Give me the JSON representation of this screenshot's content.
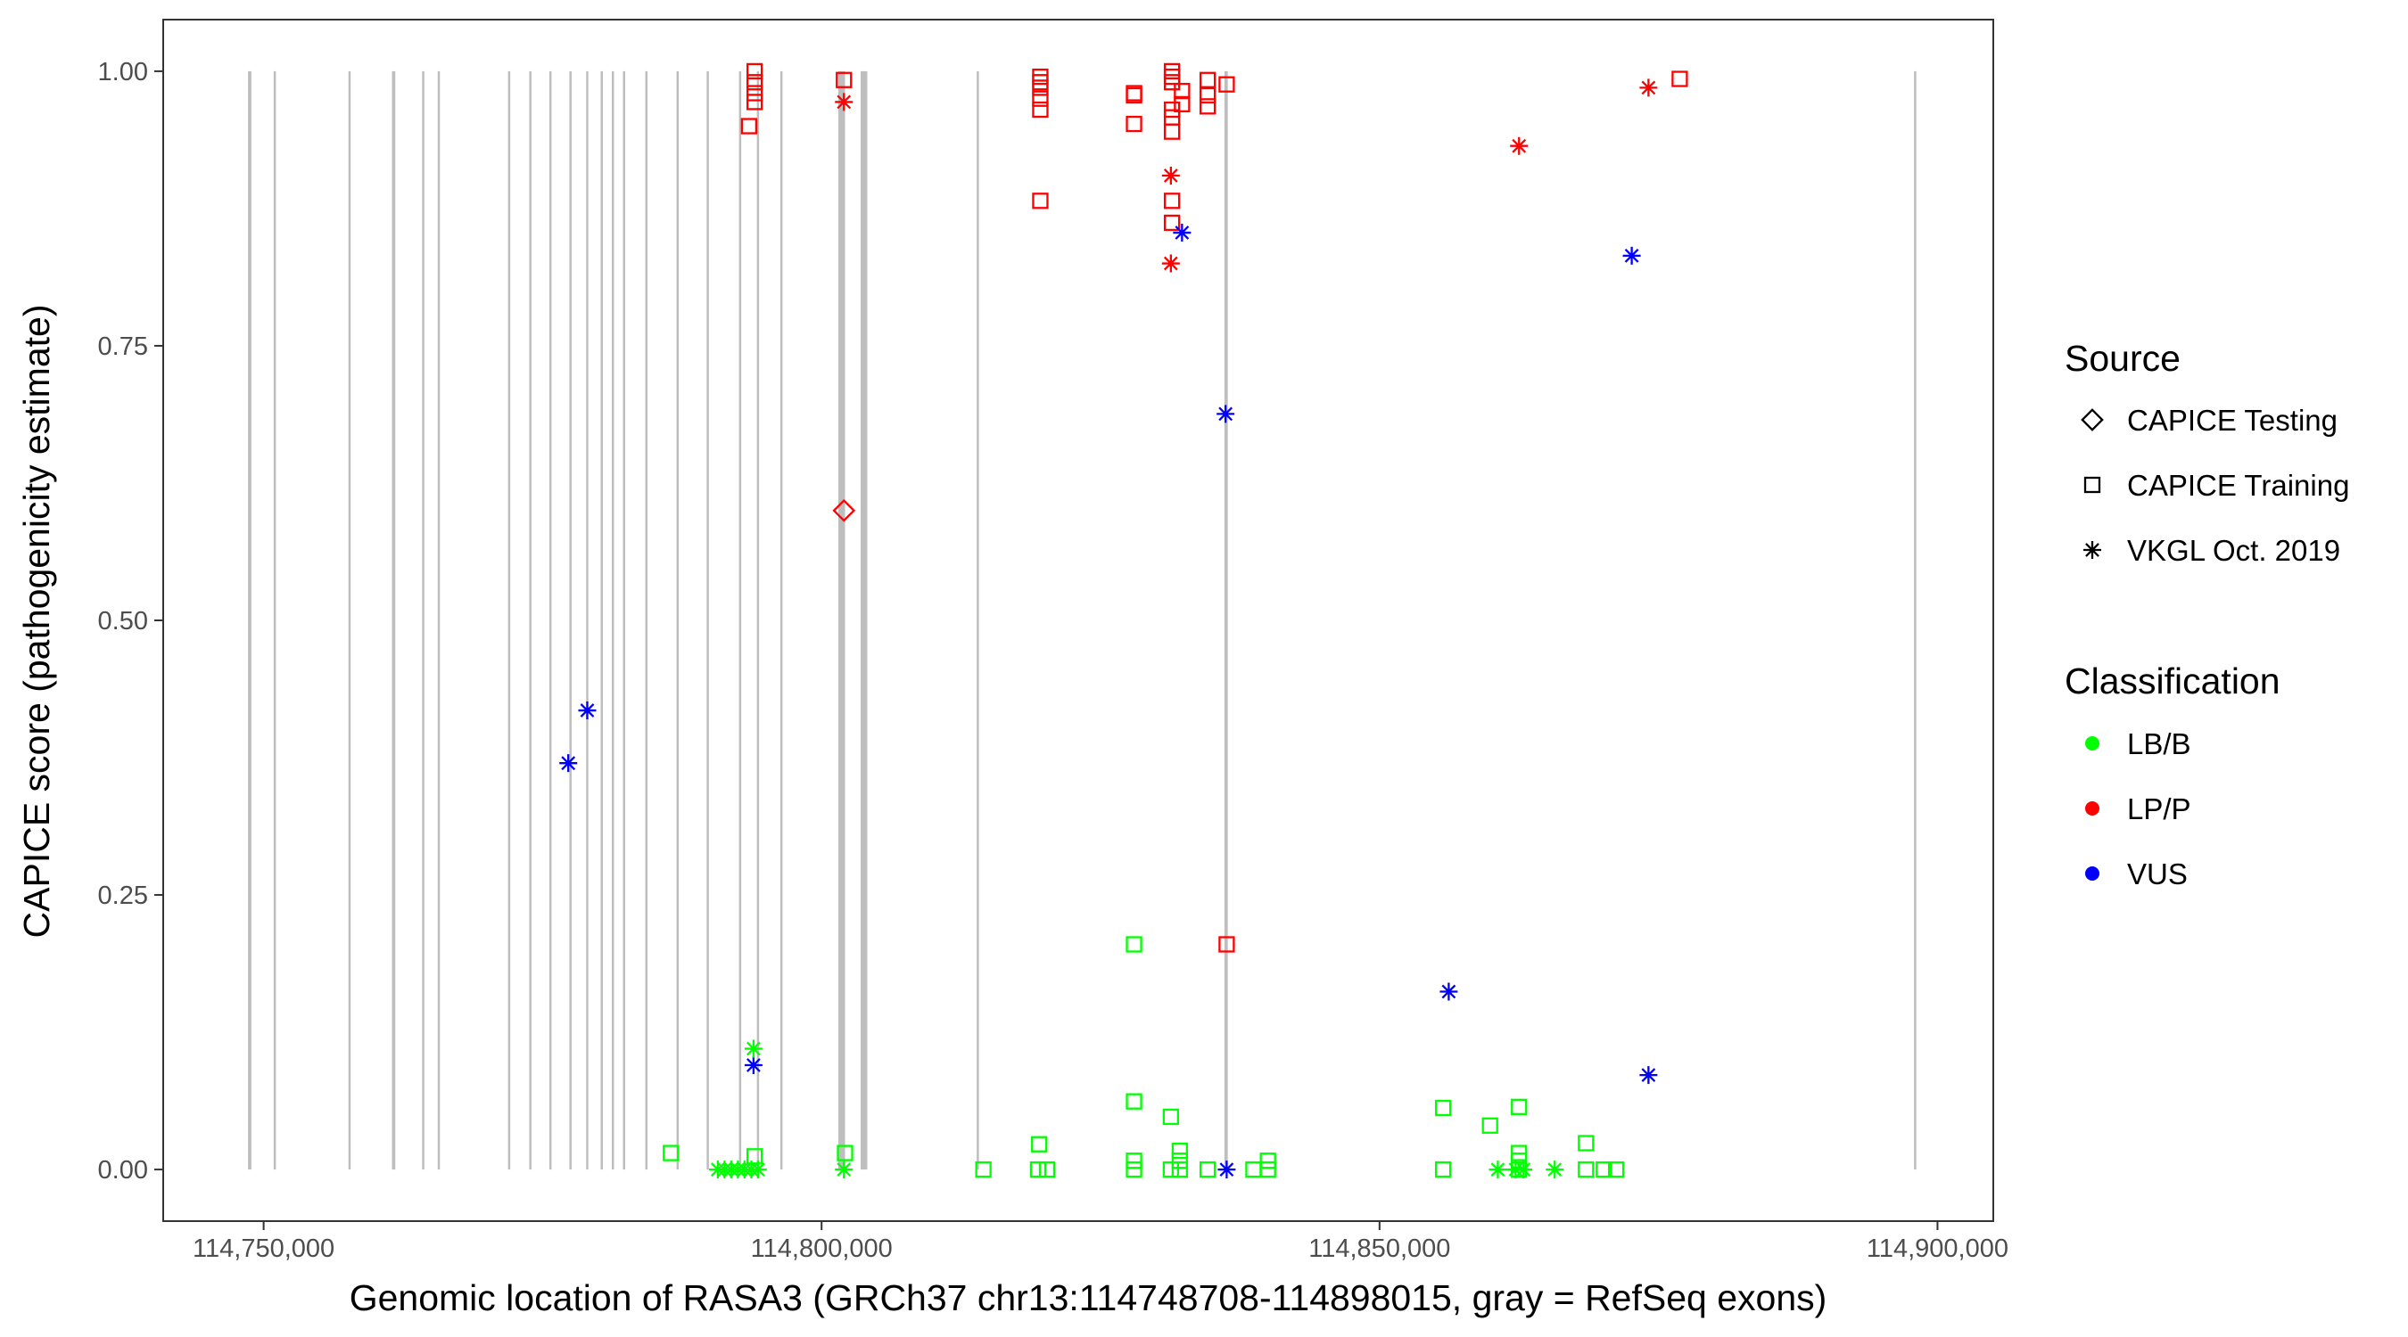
{
  "chart_data": {
    "type": "scatter",
    "xlabel": "Genomic location of RASA3 (GRCh37 chr13:114748708-114898015, gray = RefSeq exons)",
    "ylabel": "CAPICE score (pathogenicity estimate)",
    "xlim": [
      114741000,
      114905000
    ],
    "ylim": [
      -0.047,
      1.047
    ],
    "x_ticks": [
      114750000,
      114800000,
      114850000,
      114900000
    ],
    "x_tick_labels": [
      "114,750,000",
      "114,800,000",
      "114,850,000",
      "114,900,000"
    ],
    "y_ticks": [
      0,
      0.25,
      0.5,
      0.75,
      1.0
    ],
    "y_tick_labels": [
      "0.00",
      "0.25",
      "0.50",
      "0.75",
      "1.00"
    ],
    "grid": false,
    "exon_color": "#bebebe",
    "exons": [
      [
        114748600,
        114748900
      ],
      [
        114750900,
        114751100
      ],
      [
        114757600,
        114757800
      ],
      [
        114761500,
        114761800
      ],
      [
        114764200,
        114764400
      ],
      [
        114765600,
        114765800
      ],
      [
        114771900,
        114772100
      ],
      [
        114773800,
        114774000
      ],
      [
        114775600,
        114775800
      ],
      [
        114777400,
        114777600
      ],
      [
        114778900,
        114779100
      ],
      [
        114780200,
        114780400
      ],
      [
        114781200,
        114781400
      ],
      [
        114782200,
        114782400
      ],
      [
        114784200,
        114784400
      ],
      [
        114787000,
        114787200
      ],
      [
        114789700,
        114789900
      ],
      [
        114792600,
        114792800
      ],
      [
        114794200,
        114794400
      ],
      [
        114796300,
        114796500
      ],
      [
        114801500,
        114802100
      ],
      [
        114803500,
        114804100
      ],
      [
        114813900,
        114814100
      ],
      [
        114836100,
        114836400
      ],
      [
        114897900,
        114898100
      ]
    ],
    "legend": {
      "placement": "right",
      "source_title": "Source",
      "source_items": [
        {
          "label": "CAPICE Testing",
          "shape": "diamond"
        },
        {
          "label": "CAPICE Training",
          "shape": "square"
        },
        {
          "label": "VKGL Oct. 2019",
          "shape": "asterisk"
        }
      ],
      "class_title": "Classification",
      "class_items": [
        {
          "label": "LB/B",
          "color": "#00ff00"
        },
        {
          "label": "LP/P",
          "color": "#ff0000"
        },
        {
          "label": "VUS",
          "color": "#0000ff"
        }
      ]
    },
    "series": [
      {
        "name": "CAPICE Testing",
        "shape": "diamond",
        "points": [
          {
            "x": 114802000,
            "y": 0.6,
            "class": "LP/P"
          }
        ]
      },
      {
        "name": "CAPICE Training",
        "shape": "square",
        "points": [
          {
            "x": 114794000,
            "y": 1.0,
            "class": "LP/P"
          },
          {
            "x": 114794000,
            "y": 0.99,
            "class": "LP/P"
          },
          {
            "x": 114794000,
            "y": 0.98,
            "class": "LP/P"
          },
          {
            "x": 114794000,
            "y": 0.972,
            "class": "LP/P"
          },
          {
            "x": 114793500,
            "y": 0.95,
            "class": "LP/P"
          },
          {
            "x": 114802000,
            "y": 0.992,
            "class": "LP/P"
          },
          {
            "x": 114819600,
            "y": 0.995,
            "class": "LP/P"
          },
          {
            "x": 114819600,
            "y": 0.99,
            "class": "LP/P"
          },
          {
            "x": 114819600,
            "y": 0.985,
            "class": "LP/P"
          },
          {
            "x": 114819600,
            "y": 0.975,
            "class": "LP/P"
          },
          {
            "x": 114819600,
            "y": 0.965,
            "class": "LP/P"
          },
          {
            "x": 114819600,
            "y": 0.882,
            "class": "LP/P"
          },
          {
            "x": 114828000,
            "y": 0.98,
            "class": "LP/P"
          },
          {
            "x": 114828000,
            "y": 0.978,
            "class": "LP/P"
          },
          {
            "x": 114828000,
            "y": 0.952,
            "class": "LP/P"
          },
          {
            "x": 114831400,
            "y": 1.0,
            "class": "LP/P"
          },
          {
            "x": 114831400,
            "y": 0.995,
            "class": "LP/P"
          },
          {
            "x": 114831400,
            "y": 0.99,
            "class": "LP/P"
          },
          {
            "x": 114831400,
            "y": 0.965,
            "class": "LP/P"
          },
          {
            "x": 114831400,
            "y": 0.958,
            "class": "LP/P"
          },
          {
            "x": 114831400,
            "y": 0.945,
            "class": "LP/P"
          },
          {
            "x": 114831400,
            "y": 0.882,
            "class": "LP/P"
          },
          {
            "x": 114831400,
            "y": 0.862,
            "class": "LP/P"
          },
          {
            "x": 114832300,
            "y": 0.982,
            "class": "LP/P"
          },
          {
            "x": 114832300,
            "y": 0.97,
            "class": "LP/P"
          },
          {
            "x": 114834600,
            "y": 0.992,
            "class": "LP/P"
          },
          {
            "x": 114834600,
            "y": 0.978,
            "class": "LP/P"
          },
          {
            "x": 114834600,
            "y": 0.968,
            "class": "LP/P"
          },
          {
            "x": 114836300,
            "y": 0.988,
            "class": "LP/P"
          },
          {
            "x": 114836300,
            "y": 0.205,
            "class": "LP/P"
          },
          {
            "x": 114876900,
            "y": 0.993,
            "class": "LP/P"
          },
          {
            "x": 114786500,
            "y": 0.015,
            "class": "LB/B"
          },
          {
            "x": 114794000,
            "y": 0.012,
            "class": "LB/B"
          },
          {
            "x": 114802100,
            "y": 0.015,
            "class": "LB/B"
          },
          {
            "x": 114814500,
            "y": 0.0,
            "class": "LB/B"
          },
          {
            "x": 114819500,
            "y": 0.023,
            "class": "LB/B"
          },
          {
            "x": 114819400,
            "y": 0.0,
            "class": "LB/B"
          },
          {
            "x": 114820200,
            "y": 0.0,
            "class": "LB/B"
          },
          {
            "x": 114828000,
            "y": 0.205,
            "class": "LB/B"
          },
          {
            "x": 114828000,
            "y": 0.062,
            "class": "LB/B"
          },
          {
            "x": 114828000,
            "y": 0.008,
            "class": "LB/B"
          },
          {
            "x": 114828000,
            "y": 0.0,
            "class": "LB/B"
          },
          {
            "x": 114831300,
            "y": 0.048,
            "class": "LB/B"
          },
          {
            "x": 114831300,
            "y": 0.0,
            "class": "LB/B"
          },
          {
            "x": 114832100,
            "y": 0.017,
            "class": "LB/B"
          },
          {
            "x": 114832100,
            "y": 0.008,
            "class": "LB/B"
          },
          {
            "x": 114832100,
            "y": 0.0,
            "class": "LB/B"
          },
          {
            "x": 114834600,
            "y": 0.0,
            "class": "LB/B"
          },
          {
            "x": 114838700,
            "y": 0.0,
            "class": "LB/B"
          },
          {
            "x": 114840000,
            "y": 0.008,
            "class": "LB/B"
          },
          {
            "x": 114840000,
            "y": 0.0,
            "class": "LB/B"
          },
          {
            "x": 114855700,
            "y": 0.056,
            "class": "LB/B"
          },
          {
            "x": 114855700,
            "y": 0.0,
            "class": "LB/B"
          },
          {
            "x": 114859900,
            "y": 0.04,
            "class": "LB/B"
          },
          {
            "x": 114862500,
            "y": 0.057,
            "class": "LB/B"
          },
          {
            "x": 114862500,
            "y": 0.015,
            "class": "LB/B"
          },
          {
            "x": 114862500,
            "y": 0.008,
            "class": "LB/B"
          },
          {
            "x": 114862500,
            "y": 0.0,
            "class": "LB/B"
          },
          {
            "x": 114868500,
            "y": 0.024,
            "class": "LB/B"
          },
          {
            "x": 114868500,
            "y": 0.0,
            "class": "LB/B"
          },
          {
            "x": 114870100,
            "y": 0.0,
            "class": "LB/B"
          },
          {
            "x": 114871200,
            "y": 0.0,
            "class": "LB/B"
          }
        ]
      },
      {
        "name": "VKGL Oct. 2019",
        "shape": "asterisk",
        "points": [
          {
            "x": 114802000,
            "y": 0.972,
            "class": "LP/P"
          },
          {
            "x": 114831300,
            "y": 0.905,
            "class": "LP/P"
          },
          {
            "x": 114831300,
            "y": 0.825,
            "class": "LP/P"
          },
          {
            "x": 114862500,
            "y": 0.932,
            "class": "LP/P"
          },
          {
            "x": 114874100,
            "y": 0.985,
            "class": "LP/P"
          },
          {
            "x": 114777300,
            "y": 0.37,
            "class": "VUS"
          },
          {
            "x": 114779000,
            "y": 0.418,
            "class": "VUS"
          },
          {
            "x": 114793900,
            "y": 0.095,
            "class": "VUS"
          },
          {
            "x": 114832300,
            "y": 0.853,
            "class": "VUS"
          },
          {
            "x": 114836200,
            "y": 0.688,
            "class": "VUS"
          },
          {
            "x": 114836300,
            "y": 0.0,
            "class": "VUS"
          },
          {
            "x": 114856200,
            "y": 0.162,
            "class": "VUS"
          },
          {
            "x": 114872600,
            "y": 0.832,
            "class": "VUS"
          },
          {
            "x": 114874100,
            "y": 0.086,
            "class": "VUS"
          },
          {
            "x": 114793900,
            "y": 0.11,
            "class": "LB/B"
          },
          {
            "x": 114790700,
            "y": 0.0,
            "class": "LB/B"
          },
          {
            "x": 114791300,
            "y": 0.0,
            "class": "LB/B"
          },
          {
            "x": 114791900,
            "y": 0.0,
            "class": "LB/B"
          },
          {
            "x": 114792500,
            "y": 0.0,
            "class": "LB/B"
          },
          {
            "x": 114793100,
            "y": 0.0,
            "class": "LB/B"
          },
          {
            "x": 114793700,
            "y": 0.0,
            "class": "LB/B"
          },
          {
            "x": 114794300,
            "y": 0.0,
            "class": "LB/B"
          },
          {
            "x": 114802000,
            "y": 0.0,
            "class": "LB/B"
          },
          {
            "x": 114860600,
            "y": 0.0,
            "class": "LB/B"
          },
          {
            "x": 114862200,
            "y": 0.0,
            "class": "LB/B"
          },
          {
            "x": 114862900,
            "y": 0.0,
            "class": "LB/B"
          },
          {
            "x": 114865700,
            "y": 0.0,
            "class": "LB/B"
          }
        ]
      }
    ]
  }
}
